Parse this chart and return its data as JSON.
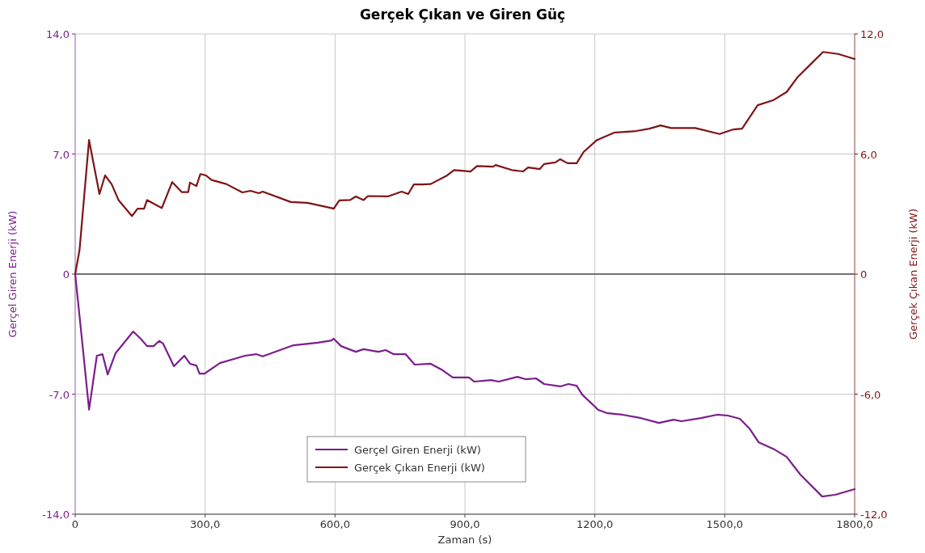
{
  "chart_data": {
    "type": "line",
    "title": "Gerçek Çıkan ve Giren Güç",
    "xlabel": "Zaman (s)",
    "ylabel": "Gerçel Giren Enerji (kW)",
    "y2label": "Gerçek Çıkan Enerji (kW)",
    "xlim": [
      0,
      1800
    ],
    "xticks": [
      0,
      {
        "value": 300,
        "label": "300,0"
      },
      {
        "value": 600,
        "label": "600,0"
      },
      {
        "value": 900,
        "label": "900,0"
      },
      {
        "value": 1200,
        "label": "1200,0"
      },
      {
        "value": 1500,
        "label": "1500,0"
      },
      {
        "value": 1800,
        "label": "1800,0"
      }
    ],
    "ylim": [
      -14,
      14
    ],
    "yticks": [
      {
        "value": -14,
        "label": "-14,0"
      },
      {
        "value": -7,
        "label": "-7,0"
      },
      0,
      {
        "value": 7,
        "label": "7,0"
      },
      {
        "value": 14,
        "label": "14,0"
      }
    ],
    "y2lim": [
      -12,
      12
    ],
    "y2ticks": [
      {
        "value": -12,
        "label": "-12,0"
      },
      {
        "value": -6,
        "label": "-6,0"
      },
      0,
      {
        "value": 6,
        "label": "6,0"
      },
      {
        "value": 12,
        "label": "12,0"
      }
    ],
    "grid": true,
    "legend": "bottom",
    "line_style": "solid",
    "marker": "none",
    "ref_lines": [
      {
        "axis": "y",
        "value": 0,
        "color": "#000000"
      }
    ],
    "series": [
      {
        "name": "Gerçel Giren Enerji (kW)",
        "color": "#7b1e8c",
        "x": [
          0,
          17,
          32,
          50,
          63,
          75,
          93,
          134,
          153,
          166,
          181,
          194,
          203,
          228,
          252,
          265,
          280,
          287,
          299,
          334,
          373,
          392,
          418,
          433,
          504,
          560,
          592,
          597,
          614,
          648,
          666,
          700,
          717,
          735,
          763,
          784,
          821,
          848,
          872,
          909,
          922,
          960,
          978,
          1021,
          1040,
          1064,
          1083,
          1120,
          1139,
          1158,
          1171,
          1208,
          1227,
          1264,
          1307,
          1348,
          1382,
          1400,
          1445,
          1482,
          1507,
          1535,
          1557,
          1578,
          1613,
          1643,
          1675,
          1725,
          1755,
          1800
        ],
        "values": [
          0,
          -4.15,
          -7.9,
          -4.76,
          -4.67,
          -5.85,
          -4.62,
          -3.35,
          -3.82,
          -4.2,
          -4.2,
          -3.9,
          -4.05,
          -5.37,
          -4.76,
          -5.23,
          -5.33,
          -5.8,
          -5.8,
          -5.19,
          -4.9,
          -4.76,
          -4.67,
          -4.8,
          -4.15,
          -4.0,
          -3.87,
          -3.77,
          -4.2,
          -4.53,
          -4.38,
          -4.53,
          -4.43,
          -4.67,
          -4.67,
          -5.28,
          -5.23,
          -5.6,
          -6.03,
          -6.03,
          -6.27,
          -6.18,
          -6.27,
          -5.99,
          -6.13,
          -6.08,
          -6.41,
          -6.55,
          -6.41,
          -6.51,
          -7.03,
          -7.92,
          -8.1,
          -8.2,
          -8.4,
          -8.68,
          -8.49,
          -8.58,
          -8.4,
          -8.2,
          -8.25,
          -8.44,
          -9.0,
          -9.8,
          -10.2,
          -10.66,
          -11.7,
          -12.97,
          -12.87,
          -12.54
        ]
      },
      {
        "name": "Gerçek Çıkan Enerji (kW)",
        "color": "#7f1416",
        "axis": "y2",
        "x": [
          0,
          10,
          32,
          56,
          69,
          84,
          100,
          131,
          144,
          159,
          166,
          200,
          224,
          246,
          261,
          265,
          280,
          289,
          302,
          315,
          349,
          386,
          405,
          424,
          433,
          498,
          536,
          592,
          597,
          610,
          635,
          648,
          666,
          676,
          722,
          754,
          769,
          782,
          801,
          821,
          859,
          875,
          913,
          928,
          965,
          971,
          1008,
          1034,
          1046,
          1073,
          1083,
          1109,
          1120,
          1137,
          1158,
          1174,
          1205,
          1245,
          1296,
          1326,
          1352,
          1376,
          1432,
          1488,
          1520,
          1540,
          1576,
          1613,
          1643,
          1669,
          1699,
          1727,
          1762,
          1800
        ],
        "values": [
          0,
          1.2,
          6.7,
          4.0,
          4.93,
          4.5,
          3.7,
          2.9,
          3.27,
          3.27,
          3.7,
          3.3,
          4.6,
          4.1,
          4.1,
          4.57,
          4.4,
          5.0,
          4.93,
          4.7,
          4.5,
          4.08,
          4.16,
          4.04,
          4.12,
          3.6,
          3.56,
          3.3,
          3.27,
          3.68,
          3.7,
          3.88,
          3.7,
          3.9,
          3.88,
          4.12,
          4.0,
          4.48,
          4.48,
          4.5,
          4.93,
          5.2,
          5.13,
          5.4,
          5.37,
          5.45,
          5.2,
          5.13,
          5.33,
          5.25,
          5.5,
          5.58,
          5.74,
          5.54,
          5.54,
          6.1,
          6.7,
          7.07,
          7.15,
          7.27,
          7.43,
          7.3,
          7.3,
          7.0,
          7.23,
          7.27,
          8.44,
          8.7,
          9.1,
          9.86,
          10.5,
          11.1,
          11.0,
          10.75
        ]
      }
    ]
  }
}
